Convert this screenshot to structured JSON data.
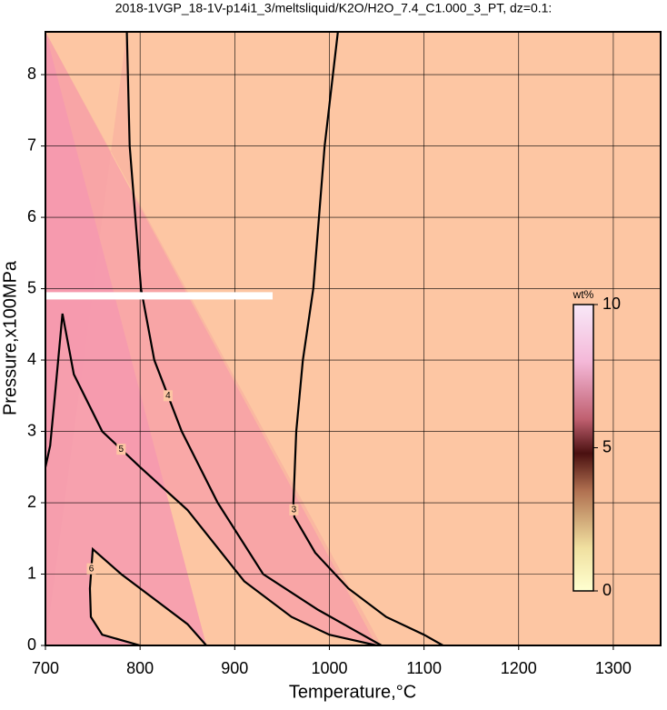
{
  "chart_data": {
    "type": "contour",
    "title": "2018-1VGP_18-1V-p14i1_3/meltsliquid/K2O/H2O_7.4_C1.000_3_PT, dz=0.1:",
    "xlabel": "Temperature,°C",
    "ylabel": "Pressure,x100MPa",
    "xlim": [
      700,
      1350
    ],
    "ylim": [
      0,
      8.6
    ],
    "xticks": [
      700,
      800,
      900,
      1000,
      1100,
      1200,
      1300
    ],
    "yticks": [
      0,
      1,
      2,
      3,
      4,
      5,
      6,
      7,
      8
    ],
    "grid": true,
    "background_color": "#fdc6a3",
    "contours": [
      {
        "level": "3",
        "color": "#000000",
        "x": [
          1009,
          995,
          983,
          972,
          965,
          962,
          963,
          985,
          1020,
          1060,
          1100,
          1120
        ],
        "y": [
          8.6,
          7,
          5,
          4,
          3,
          2,
          1.8,
          1.3,
          0.8,
          0.4,
          0.15,
          0
        ]
      },
      {
        "level": "4",
        "color": "#000000",
        "x": [
          786,
          789,
          801,
          815,
          844,
          882,
          930,
          988,
          1055
        ],
        "y": [
          8.6,
          7,
          5,
          4,
          3,
          2,
          1,
          0.5,
          0
        ]
      },
      {
        "level": "5",
        "color": "#000000",
        "x": [
          700,
          705,
          710,
          718,
          730,
          760,
          800,
          850,
          880,
          910,
          960,
          1000,
          1050
        ],
        "y": [
          2.5,
          2.8,
          3.5,
          4.65,
          3.8,
          3,
          2.5,
          1.9,
          1.4,
          0.9,
          0.4,
          0.15,
          0
        ]
      },
      {
        "level": "6",
        "color": "#000000",
        "x": [
          800,
          760,
          748,
          747,
          750,
          780,
          820,
          850,
          870
        ],
        "y": [
          0,
          0.15,
          0.4,
          0.8,
          1.35,
          1,
          0.6,
          0.3,
          0
        ]
      }
    ],
    "colorbar": {
      "label": "wt%",
      "lim": [
        0,
        10
      ],
      "ticks": [
        0,
        5,
        10
      ]
    }
  }
}
